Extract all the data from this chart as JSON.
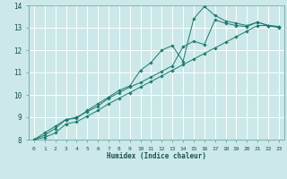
{
  "title": "",
  "xlabel": "Humidex (Indice chaleur)",
  "ylabel": "",
  "bg_color": "#cce8e8",
  "grid_color": "#ffffff",
  "line_color": "#1a7a6e",
  "marker_color": "#1a7a6e",
  "xlim": [
    -0.5,
    23.5
  ],
  "ylim": [
    8,
    14
  ],
  "xtick_labels": [
    "0",
    "1",
    "2",
    "3",
    "4",
    "5",
    "6",
    "7",
    "8",
    "9",
    "10",
    "11",
    "12",
    "13",
    "14",
    "15",
    "16",
    "17",
    "18",
    "19",
    "20",
    "21",
    "22",
    "23"
  ],
  "yticks": [
    8,
    9,
    10,
    11,
    12,
    13,
    14
  ],
  "series": [
    [
      8.0,
      8.3,
      8.6,
      8.9,
      8.95,
      9.3,
      9.6,
      9.9,
      10.2,
      10.4,
      11.1,
      11.45,
      12.0,
      12.2,
      11.5,
      13.4,
      13.95,
      13.55,
      13.3,
      13.2,
      13.1,
      13.25,
      13.1,
      13.05
    ],
    [
      8.0,
      8.2,
      8.5,
      8.9,
      9.0,
      9.25,
      9.5,
      9.85,
      10.1,
      10.35,
      10.55,
      10.8,
      11.05,
      11.3,
      12.15,
      12.4,
      12.25,
      13.35,
      13.2,
      13.1,
      13.05,
      13.25,
      13.1,
      13.0
    ],
    [
      8.0,
      8.1,
      8.3,
      8.7,
      8.8,
      9.05,
      9.3,
      9.6,
      9.85,
      10.1,
      10.35,
      10.6,
      10.85,
      11.1,
      11.35,
      11.6,
      11.85,
      12.1,
      12.35,
      12.6,
      12.85,
      13.1,
      13.1,
      13.05
    ]
  ]
}
